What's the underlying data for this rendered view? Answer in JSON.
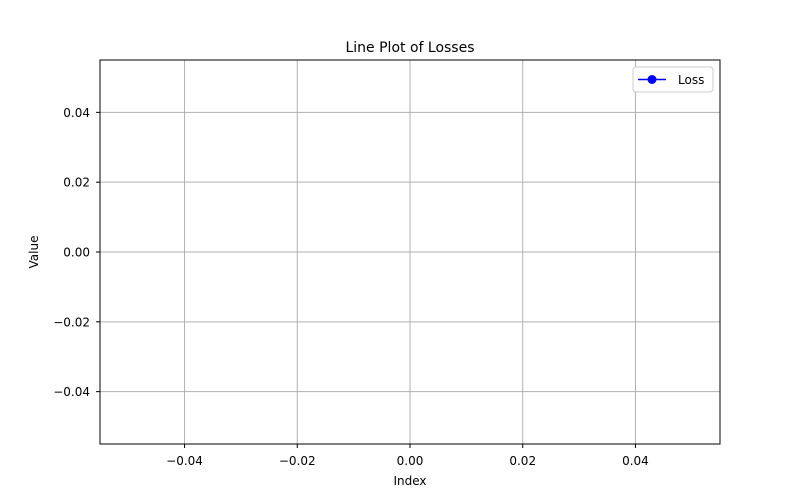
{
  "chart_data": {
    "type": "line",
    "title": "Line Plot of Losses",
    "xlabel": "Index",
    "ylabel": "Value",
    "xlim": [
      -0.055,
      0.055
    ],
    "ylim": [
      -0.055,
      0.055
    ],
    "xticks": [
      -0.04,
      -0.02,
      0.0,
      0.02,
      0.04
    ],
    "yticks": [
      -0.04,
      -0.02,
      0.0,
      0.02,
      0.04
    ],
    "xtick_labels": [
      "−0.04",
      "−0.02",
      "0.00",
      "0.02",
      "0.04"
    ],
    "ytick_labels": [
      "−0.04",
      "−0.02",
      "0.00",
      "0.02",
      "0.04"
    ],
    "grid": true,
    "legend": {
      "placement": "top-right",
      "entries": [
        "Loss"
      ]
    },
    "series": [
      {
        "name": "Loss",
        "color": "#0000ff",
        "marker": "circle",
        "x": [],
        "y": []
      }
    ]
  }
}
